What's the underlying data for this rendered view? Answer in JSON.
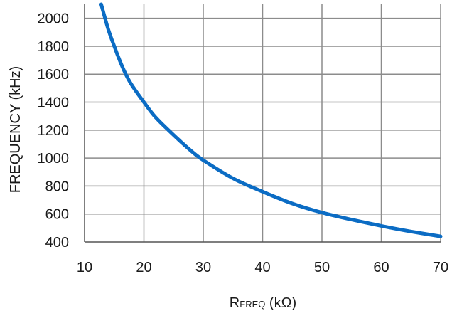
{
  "chart_data": {
    "type": "line",
    "title": "",
    "xlabel_main": "R",
    "xlabel_sub": "FREQ",
    "xlabel_unit": " (kΩ)",
    "ylabel": "FREQUENCY (kHz)",
    "xlim": [
      10,
      70
    ],
    "ylim": [
      400,
      2100
    ],
    "x_ticks": [
      "10",
      "20",
      "30",
      "40",
      "50",
      "60",
      "70"
    ],
    "y_ticks": [
      "400",
      "600",
      "800",
      "1000",
      "1200",
      "1400",
      "1600",
      "1800",
      "2000"
    ],
    "grid": true,
    "line_color": "#0b6cc4",
    "grid_color": "#8c8c8c",
    "series": [
      {
        "x": [
          12.8,
          14,
          15,
          16,
          17,
          18,
          20,
          22,
          25,
          28,
          30,
          35,
          40,
          45,
          50,
          55,
          60,
          65,
          70
        ],
        "y": [
          2100,
          1920,
          1800,
          1690,
          1595,
          1520,
          1400,
          1290,
          1165,
          1050,
          985,
          855,
          760,
          675,
          610,
          560,
          515,
          475,
          440
        ]
      }
    ]
  }
}
